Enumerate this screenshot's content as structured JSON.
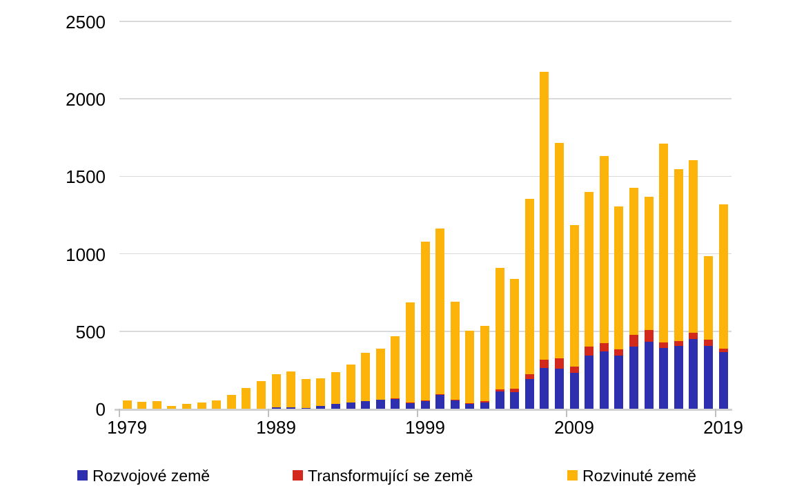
{
  "colors": {
    "developing_blue": "#2D2FAF",
    "transition_red": "#D3291D",
    "developed_yellow": "#FDB40A",
    "gridline_gray": "#D9D9D9",
    "axis_gray": "#D0D0D0",
    "tick_gray": "#BFBFBF",
    "text_black": "#000000",
    "background": "#FFFFFF"
  },
  "chart_data": {
    "type": "bar",
    "stacked": true,
    "title": "",
    "xlabel": "",
    "ylabel": "",
    "grid": true,
    "legend_position": "bottom",
    "ylim": [
      0,
      2500
    ],
    "yticks": [
      0,
      500,
      1000,
      1500,
      2000,
      2500
    ],
    "ytick_labels": [
      "0",
      "500",
      "1000",
      "1500",
      "2000",
      "2500"
    ],
    "x": [
      1979,
      1980,
      1981,
      1982,
      1983,
      1984,
      1985,
      1986,
      1987,
      1988,
      1989,
      1990,
      1991,
      1992,
      1993,
      1994,
      1995,
      1996,
      1997,
      1998,
      1999,
      2000,
      2001,
      2002,
      2003,
      2004,
      2005,
      2006,
      2007,
      2008,
      2009,
      2010,
      2011,
      2012,
      2013,
      2014,
      2015,
      2016,
      2017,
      2018,
      2019
    ],
    "xtick_labels": [
      "1979",
      "1989",
      "1999",
      "2009",
      "2019"
    ],
    "xtick_every": 10,
    "series": [
      {
        "name": "Rozvojové země",
        "color_key": "developing_blue",
        "values": [
          0,
          0,
          0,
          0,
          0,
          0,
          0,
          0,
          0,
          0,
          8,
          9,
          6,
          18,
          30,
          42,
          50,
          58,
          64,
          35,
          50,
          87,
          53,
          33,
          40,
          111,
          105,
          190,
          263,
          260,
          234,
          345,
          370,
          345,
          400,
          434,
          392,
          404,
          451,
          404,
          364
        ]
      },
      {
        "name": "Transformující se země",
        "color_key": "transition_red",
        "values": [
          0,
          0,
          0,
          0,
          0,
          0,
          0,
          0,
          0,
          0,
          0,
          0,
          0,
          0,
          0,
          0,
          0,
          0,
          3,
          3,
          5,
          7,
          6,
          4,
          10,
          16,
          25,
          35,
          53,
          64,
          40,
          55,
          53,
          37,
          75,
          74,
          34,
          33,
          38,
          40,
          25
        ]
      },
      {
        "name": "Rozvinuté země",
        "color_key": "developed_yellow",
        "values": [
          55,
          45,
          47,
          20,
          30,
          40,
          52,
          90,
          135,
          180,
          217,
          231,
          184,
          180,
          205,
          243,
          310,
          332,
          403,
          647,
          1025,
          1071,
          631,
          468,
          485,
          783,
          710,
          1130,
          1859,
          1391,
          911,
          1000,
          1207,
          923,
          950,
          862,
          1284,
          1108,
          1116,
          541,
          931
        ]
      }
    ]
  }
}
